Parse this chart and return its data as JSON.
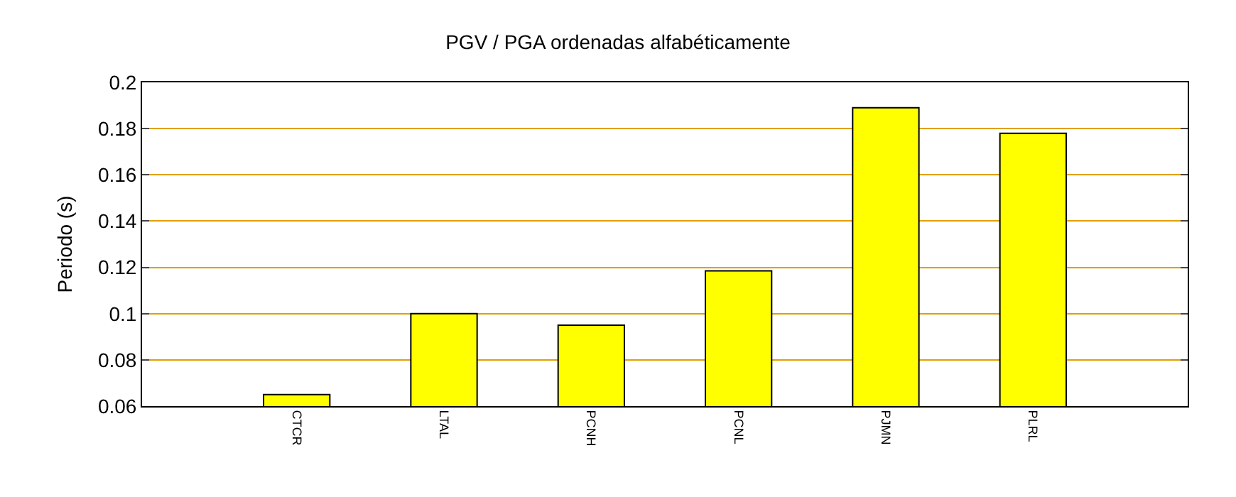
{
  "chart_data": {
    "type": "bar",
    "title": "PGV / PGA ordenadas alfabéticamente",
    "ylabel": "Periodo (s)",
    "categories": [
      "CTCR",
      "LTAL",
      "PCNH",
      "PCNL",
      "PJMN",
      "PLRL"
    ],
    "values": [
      0.065,
      0.1,
      0.095,
      0.1185,
      0.189,
      0.178
    ],
    "color": "#ffff00",
    "ylim": [
      0.06,
      0.2
    ],
    "yticks": [
      {
        "value": 0.06,
        "label": "0.06"
      },
      {
        "value": 0.08,
        "label": "0.08"
      },
      {
        "value": 0.1,
        "label": "0.1"
      },
      {
        "value": 0.12,
        "label": "0.12"
      },
      {
        "value": 0.14,
        "label": "0.14"
      },
      {
        "value": 0.16,
        "label": "0.16"
      },
      {
        "value": 0.18,
        "label": "0.18"
      },
      {
        "value": 0.2,
        "label": "0.2"
      }
    ],
    "grid": "y"
  }
}
